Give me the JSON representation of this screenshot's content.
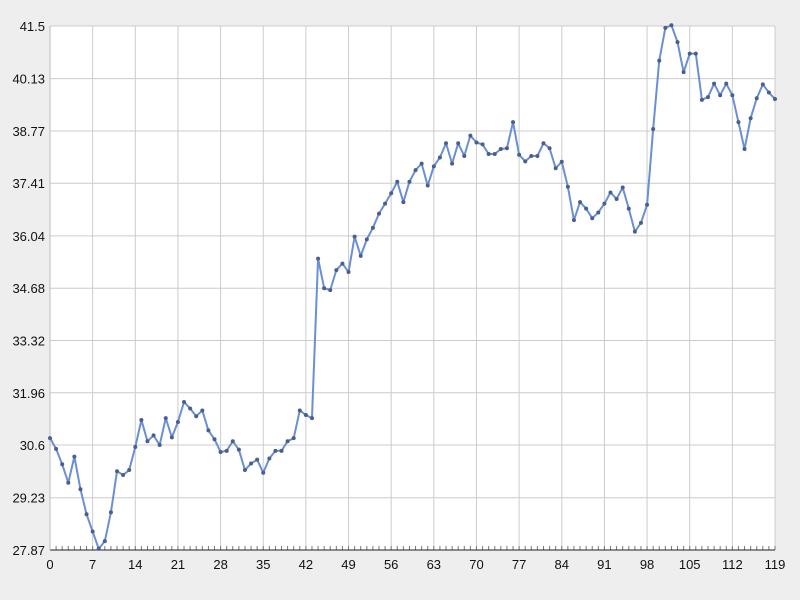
{
  "chart_data": {
    "type": "line",
    "title": "",
    "xlabel": "",
    "ylabel": "",
    "xlim": [
      0,
      119
    ],
    "ylim": [
      27.87,
      41.5
    ],
    "grid": true,
    "x_ticks": [
      0,
      7,
      14,
      21,
      28,
      35,
      42,
      49,
      56,
      63,
      70,
      77,
      84,
      91,
      98,
      105,
      112,
      119
    ],
    "y_ticks": [
      "27.87",
      "29.23",
      "30.6",
      "31.96",
      "33.32",
      "34.68",
      "36.04",
      "37.41",
      "38.77",
      "40.13",
      "41.5"
    ],
    "colors": {
      "line": "#6a8fd4",
      "marker": "#4a5f8a",
      "grid": "#cccccc",
      "plot_bg": "#ffffff",
      "page_bg": "#eeeeee"
    },
    "series": [
      {
        "values": [
          30.78,
          30.5,
          30.1,
          29.62,
          30.3,
          29.45,
          28.8,
          28.35,
          27.9,
          28.1,
          28.85,
          29.92,
          29.82,
          29.95,
          30.55,
          31.25,
          30.7,
          30.85,
          30.6,
          31.3,
          30.8,
          31.2,
          31.72,
          31.55,
          31.35,
          31.5,
          30.98,
          30.75,
          30.42,
          30.45,
          30.7,
          30.48,
          29.95,
          30.12,
          30.22,
          29.88,
          30.25,
          30.45,
          30.45,
          30.7,
          30.78,
          31.5,
          31.38,
          31.3,
          35.45,
          34.68,
          34.63,
          35.15,
          35.32,
          35.1,
          36.02,
          35.52,
          35.95,
          36.25,
          36.62,
          36.88,
          37.15,
          37.45,
          36.92,
          37.45,
          37.75,
          37.92,
          37.35,
          37.85,
          38.08,
          38.45,
          37.92,
          38.45,
          38.12,
          38.65,
          38.47,
          38.42,
          38.17,
          38.17,
          38.3,
          38.32,
          39.0,
          38.15,
          37.98,
          38.12,
          38.12,
          38.45,
          38.32,
          37.8,
          37.97,
          37.32,
          36.45,
          36.92,
          36.75,
          36.5,
          36.65,
          36.88,
          37.17,
          37.0,
          37.3,
          36.75,
          36.15,
          36.38,
          36.85,
          38.82,
          40.6,
          41.45,
          41.52,
          41.08,
          40.3,
          40.78,
          40.78,
          39.58,
          39.65,
          40.0,
          39.7,
          40.0,
          39.7,
          39.0,
          38.3,
          39.1,
          39.62,
          39.98,
          39.77,
          39.6
        ]
      }
    ]
  }
}
